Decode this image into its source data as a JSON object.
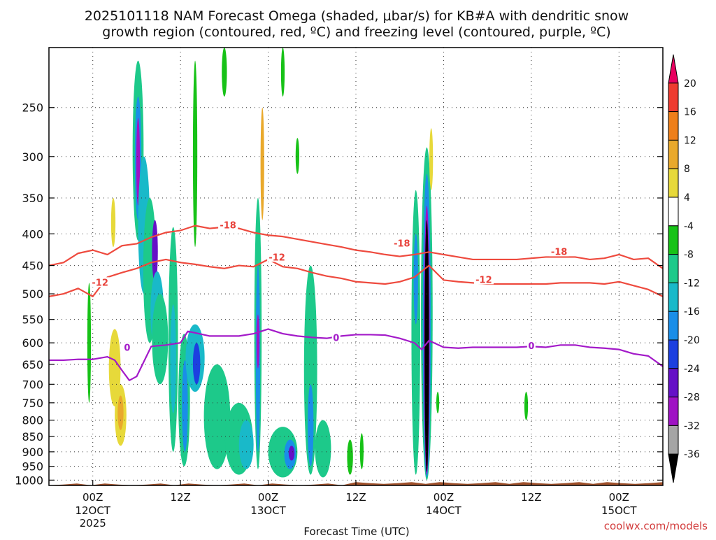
{
  "title_line1": "2025101118 NAM Forecast Omega (shaded, μbar/s) for KB#A with dendritic snow",
  "title_line2": "growth region (contoured, red, ºC) and freezing level (contoured, purple, ºC)",
  "credit": "coolwx.com/models",
  "chart_data": {
    "type": "heatmap",
    "xlabel": "Forecast Time (UTC)",
    "y_scale": "log-pressure",
    "ylim": [
      1020,
      200
    ],
    "xlim": [
      -6,
      78
    ],
    "y_ticks": [
      250,
      300,
      350,
      400,
      450,
      500,
      550,
      600,
      650,
      700,
      750,
      800,
      850,
      900,
      950,
      1000
    ],
    "x_ticks": [
      {
        "hour": 0,
        "label": "00Z",
        "label2": "12OCT",
        "label3": "2025"
      },
      {
        "hour": 12,
        "label": "12Z",
        "label2": "",
        "label3": ""
      },
      {
        "hour": 24,
        "label": "00Z",
        "label2": "13OCT",
        "label3": ""
      },
      {
        "hour": 36,
        "label": "12Z",
        "label2": "",
        "label3": ""
      },
      {
        "hour": 48,
        "label": "00Z",
        "label2": "14OCT",
        "label3": ""
      },
      {
        "hour": 60,
        "label": "12Z",
        "label2": "",
        "label3": ""
      },
      {
        "hour": 72,
        "label": "00Z",
        "label2": "15OCT",
        "label3": ""
      }
    ],
    "grid": true,
    "colorbar": {
      "labels": [
        "20",
        "16",
        "12",
        "8",
        "4",
        "-4",
        "-8",
        "-12",
        "-16",
        "-20",
        "-24",
        "-28",
        "-32",
        "-36"
      ],
      "colors": [
        "#e8005f",
        "#ee3b30",
        "#ee7f1a",
        "#e9a92c",
        "#e7d93a",
        "#ffffff",
        "#17c217",
        "#1dc98a",
        "#19b9c9",
        "#1a8ee8",
        "#1c3fe0",
        "#6510c7",
        "#9f12c4",
        "#a5a5a5",
        "#000000"
      ]
    },
    "omega_cells": [
      {
        "x": 6.2,
        "p0": 210,
        "p1": 410,
        "w": 1.5,
        "v": -8
      },
      {
        "x": 6.2,
        "p0": 240,
        "p1": 380,
        "w": 0.9,
        "v": -16
      },
      {
        "x": 6.2,
        "p0": 260,
        "p1": 360,
        "w": 0.5,
        "v": -28
      },
      {
        "x": 7.0,
        "p0": 300,
        "p1": 500,
        "w": 1.6,
        "v": -12
      },
      {
        "x": 7.8,
        "p0": 350,
        "p1": 600,
        "w": 1.8,
        "v": -8
      },
      {
        "x": 8.5,
        "p0": 380,
        "p1": 480,
        "w": 0.8,
        "v": -24
      },
      {
        "x": 8.8,
        "p0": 460,
        "p1": 620,
        "w": 1.8,
        "v": -12
      },
      {
        "x": 9.2,
        "p0": 500,
        "p1": 700,
        "w": 2.2,
        "v": -8
      },
      {
        "x": 2.8,
        "p0": 350,
        "p1": 420,
        "w": 0.6,
        "v": 6
      },
      {
        "x": 3.0,
        "p0": 570,
        "p1": 760,
        "w": 1.6,
        "v": 6
      },
      {
        "x": 3.8,
        "p0": 700,
        "p1": 880,
        "w": 1.6,
        "v": 6
      },
      {
        "x": 3.8,
        "p0": 730,
        "p1": 830,
        "w": 0.8,
        "v": 10
      },
      {
        "x": 11.0,
        "p0": 390,
        "p1": 900,
        "w": 1.3,
        "v": -8
      },
      {
        "x": 11.0,
        "p0": 520,
        "p1": 780,
        "w": 0.8,
        "v": -14
      },
      {
        "x": 12.5,
        "p0": 580,
        "p1": 950,
        "w": 1.6,
        "v": -8
      },
      {
        "x": 12.6,
        "p0": 640,
        "p1": 900,
        "w": 0.8,
        "v": -16
      },
      {
        "x": 14.0,
        "p0": 560,
        "p1": 720,
        "w": 2.6,
        "v": -14
      },
      {
        "x": 14.2,
        "p0": 600,
        "p1": 700,
        "w": 1.0,
        "v": -22
      },
      {
        "x": 17.0,
        "p0": 650,
        "p1": 960,
        "w": 3.6,
        "v": -8
      },
      {
        "x": 20.0,
        "p0": 750,
        "p1": 980,
        "w": 3.8,
        "v": -8
      },
      {
        "x": 21.0,
        "p0": 800,
        "p1": 960,
        "w": 2.0,
        "v": -14
      },
      {
        "x": 22.6,
        "p0": 350,
        "p1": 960,
        "w": 1.0,
        "v": -8
      },
      {
        "x": 22.6,
        "p0": 450,
        "p1": 900,
        "w": 0.6,
        "v": -18
      },
      {
        "x": 22.6,
        "p0": 540,
        "p1": 660,
        "w": 0.3,
        "v": -28
      },
      {
        "x": 23.2,
        "p0": 250,
        "p1": 380,
        "w": 0.5,
        "v": 8
      },
      {
        "x": 26.0,
        "p0": 820,
        "p1": 990,
        "w": 4.0,
        "v": -8
      },
      {
        "x": 27.0,
        "p0": 860,
        "p1": 960,
        "w": 1.6,
        "v": -16
      },
      {
        "x": 27.2,
        "p0": 880,
        "p1": 930,
        "w": 0.8,
        "v": -26
      },
      {
        "x": 29.8,
        "p0": 450,
        "p1": 980,
        "w": 1.8,
        "v": -8
      },
      {
        "x": 29.8,
        "p0": 700,
        "p1": 950,
        "w": 0.8,
        "v": -18
      },
      {
        "x": 31.5,
        "p0": 800,
        "p1": 990,
        "w": 2.2,
        "v": -8
      },
      {
        "x": 14.0,
        "p0": 210,
        "p1": 420,
        "w": 0.6,
        "v": -6
      },
      {
        "x": 18.0,
        "p0": 200,
        "p1": 240,
        "w": 0.7,
        "v": -6
      },
      {
        "x": 35.2,
        "p0": 860,
        "p1": 980,
        "w": 0.8,
        "v": -6
      },
      {
        "x": 36.8,
        "p0": 840,
        "p1": 960,
        "w": 0.5,
        "v": -6
      },
      {
        "x": 44.2,
        "p0": 340,
        "p1": 980,
        "w": 1.2,
        "v": -8
      },
      {
        "x": 44.2,
        "p0": 400,
        "p1": 560,
        "w": 0.6,
        "v": -18
      },
      {
        "x": 45.7,
        "p0": 290,
        "p1": 1000,
        "w": 1.6,
        "v": -8
      },
      {
        "x": 45.7,
        "p0": 320,
        "p1": 990,
        "w": 1.1,
        "v": -18
      },
      {
        "x": 45.7,
        "p0": 360,
        "p1": 980,
        "w": 0.8,
        "v": -30
      },
      {
        "x": 45.7,
        "p0": 380,
        "p1": 970,
        "w": 0.6,
        "v": -40
      },
      {
        "x": 46.3,
        "p0": 270,
        "p1": 340,
        "w": 0.5,
        "v": 6
      },
      {
        "x": 47.2,
        "p0": 720,
        "p1": 780,
        "w": 0.4,
        "v": -6
      },
      {
        "x": 59.3,
        "p0": 720,
        "p1": 800,
        "w": 0.5,
        "v": -6
      },
      {
        "x": -0.5,
        "p0": 480,
        "p1": 750,
        "w": 0.5,
        "v": -6
      },
      {
        "x": 26.0,
        "p0": 200,
        "p1": 240,
        "w": 0.5,
        "v": -6
      },
      {
        "x": 28.0,
        "p0": 280,
        "p1": 320,
        "w": 0.5,
        "v": -6
      }
    ],
    "isotherm_minus18_x": [
      -6,
      -4,
      -2,
      0,
      2,
      4,
      6,
      8,
      10,
      12,
      14,
      16,
      18,
      20,
      22,
      24,
      26,
      28,
      30,
      32,
      34,
      36,
      38,
      40,
      42,
      44,
      46,
      48,
      50,
      52,
      54,
      56,
      58,
      60,
      62,
      64,
      66,
      68,
      70,
      72,
      74,
      76,
      78
    ],
    "isotherm_minus18_p": [
      450,
      445,
      430,
      425,
      432,
      418,
      415,
      405,
      398,
      395,
      388,
      392,
      390,
      392,
      398,
      402,
      404,
      408,
      412,
      416,
      420,
      425,
      428,
      432,
      435,
      432,
      428,
      432,
      436,
      440,
      440,
      440,
      440,
      438,
      436,
      436,
      436,
      440,
      438,
      432,
      440,
      438,
      455
    ],
    "isotherm_minus18_label": [
      {
        "hour": 18.5,
        "p": 388,
        "text": "-18"
      },
      {
        "hour": 42.3,
        "p": 415,
        "text": "-18"
      },
      {
        "hour": 63.8,
        "p": 428,
        "text": "-18"
      }
    ],
    "isotherm_minus12_x": [
      -6,
      -4,
      -2,
      0,
      2,
      4,
      6,
      8,
      10,
      12,
      14,
      16,
      18,
      20,
      22,
      24,
      26,
      28,
      30,
      32,
      34,
      36,
      38,
      40,
      42,
      44,
      46,
      48,
      50,
      52,
      54,
      56,
      58,
      60,
      62,
      64,
      66,
      68,
      70,
      72,
      74,
      76,
      78
    ],
    "isotherm_minus12_p": [
      505,
      500,
      490,
      505,
      470,
      462,
      455,
      445,
      440,
      445,
      448,
      452,
      455,
      450,
      452,
      440,
      452,
      455,
      462,
      468,
      472,
      478,
      480,
      482,
      478,
      470,
      450,
      475,
      478,
      480,
      482,
      482,
      482,
      482,
      482,
      480,
      480,
      480,
      482,
      478,
      485,
      492,
      505
    ],
    "isotherm_minus12_label": [
      {
        "hour": 1.0,
        "p": 480,
        "text": "-12"
      },
      {
        "hour": 25.2,
        "p": 437,
        "text": "-12"
      },
      {
        "hour": 53.5,
        "p": 475,
        "text": "-12"
      }
    ],
    "isotherm_zero_x": [
      -6,
      -4,
      -2,
      0,
      2,
      3,
      4,
      5,
      6,
      8,
      10,
      12,
      13,
      14,
      16,
      18,
      20,
      22,
      24,
      26,
      28,
      30,
      32,
      34,
      36,
      38,
      40,
      42,
      44,
      45,
      46,
      48,
      50,
      52,
      54,
      56,
      58,
      60,
      62,
      64,
      66,
      68,
      70,
      72,
      74,
      76,
      78
    ],
    "isotherm_zero_p": [
      640,
      640,
      638,
      638,
      632,
      640,
      665,
      690,
      680,
      608,
      605,
      600,
      575,
      578,
      585,
      585,
      585,
      580,
      570,
      580,
      585,
      588,
      590,
      585,
      582,
      582,
      583,
      590,
      600,
      615,
      595,
      610,
      612,
      610,
      610,
      610,
      610,
      608,
      610,
      605,
      605,
      610,
      612,
      615,
      625,
      630,
      655
    ],
    "isotherm_zero_label": [
      {
        "hour": 4.7,
        "p": 612,
        "text": "0"
      },
      {
        "hour": 33.3,
        "p": 590,
        "text": "0"
      },
      {
        "hour": 60.0,
        "p": 608,
        "text": "0"
      }
    ],
    "ground_p": 1010
  }
}
